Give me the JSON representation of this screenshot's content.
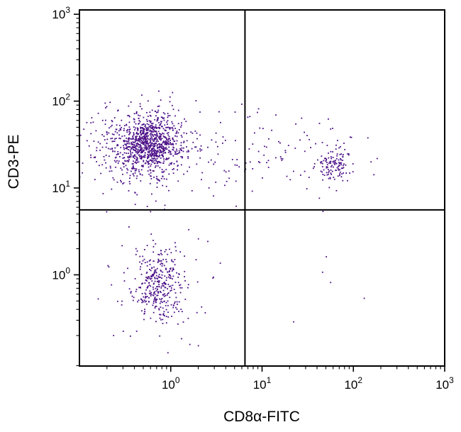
{
  "chart_data": {
    "type": "scatter",
    "title": "",
    "xlabel": "CD8α-FITC",
    "ylabel": "CD3-PE",
    "x_scale": "log10",
    "y_scale": "log10",
    "xlim_exp": [
      -1.0,
      3.0
    ],
    "ylim_exp": [
      -1.05,
      3.05
    ],
    "grid": false,
    "legend": "none",
    "tick_base": "10",
    "x_tick_exps": [
      0,
      1,
      2,
      3
    ],
    "y_tick_exps": [
      0,
      1,
      2,
      3
    ],
    "quadrant_gate": {
      "x_value": 6.5,
      "y_value": 5.6
    },
    "point_color": "#4b0f87",
    "axis_color": "#000000",
    "background_color": "#ffffff",
    "seed": 1234,
    "clusters": [
      {
        "name": "cd3pos-cd8neg-core",
        "cx": -0.23,
        "cy": 1.5,
        "sx": 0.16,
        "sy": 0.15,
        "count": 700
      },
      {
        "name": "cd3pos-cd8neg-spread",
        "cx": -0.3,
        "cy": 1.5,
        "sx": 0.3,
        "sy": 0.23,
        "count": 350
      },
      {
        "name": "cd3pos-cd8neg-halo",
        "cx": -0.2,
        "cy": 1.45,
        "sx": 0.45,
        "sy": 0.32,
        "count": 120
      },
      {
        "name": "cd3pos-mid-scatter",
        "cx": 0.45,
        "cy": 1.45,
        "sx": 0.45,
        "sy": 0.25,
        "count": 50
      },
      {
        "name": "cd3pos-cd8pos-core",
        "cx": 1.79,
        "cy": 1.29,
        "sx": 0.09,
        "sy": 0.1,
        "count": 110
      },
      {
        "name": "cd3pos-cd8pos-halo",
        "cx": 1.7,
        "cy": 1.32,
        "sx": 0.27,
        "sy": 0.22,
        "count": 45
      },
      {
        "name": "upper-right-sparse",
        "cx": 1.15,
        "cy": 1.5,
        "sx": 0.3,
        "sy": 0.27,
        "count": 25
      },
      {
        "name": "double-negative-core",
        "cx": -0.13,
        "cy": -0.11,
        "sx": 0.13,
        "sy": 0.2,
        "count": 300
      },
      {
        "name": "double-negative-halo",
        "cx": -0.15,
        "cy": -0.15,
        "sx": 0.28,
        "sy": 0.35,
        "count": 90
      },
      {
        "name": "lower-right-sparse",
        "cx": 1.55,
        "cy": -0.25,
        "sx": 0.38,
        "sy": 0.45,
        "count": 5
      }
    ]
  }
}
